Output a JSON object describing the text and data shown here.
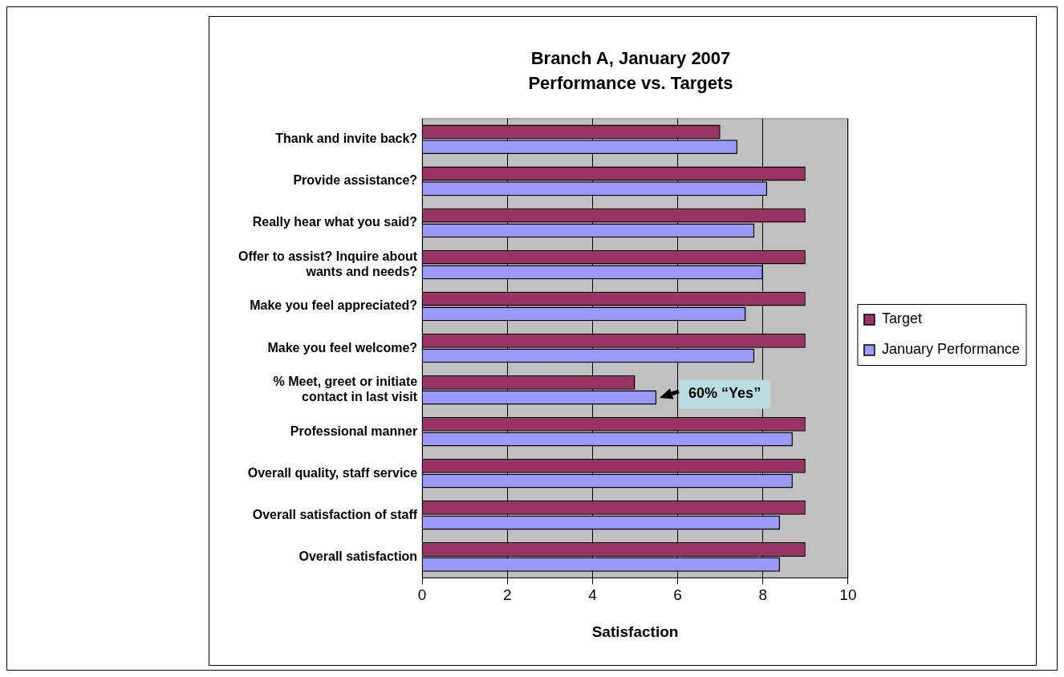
{
  "chart_data": {
    "type": "bar",
    "orientation": "horizontal",
    "title": "Branch A, January 2007",
    "subtitle": "Performance vs. Targets",
    "xlabel": "Satisfaction",
    "categories": [
      "Thank and invite back?",
      "Provide assistance?",
      "Really hear what you said?",
      "Offer to assist? Inquire about wants and needs?",
      "Make you feel appreciated?",
      "Make you feel welcome?",
      "% Meet, greet or initiate contact in last visit",
      "Professional manner",
      "Overall quality, staff service",
      "Overall satisfaction of staff",
      "Overall satisfaction"
    ],
    "series": [
      {
        "name": "Target",
        "color": "#993366",
        "values": [
          7,
          9,
          9,
          9,
          9,
          9,
          5,
          9,
          9,
          9,
          9
        ]
      },
      {
        "name": "January Performance",
        "color": "#9999ff",
        "values": [
          7.4,
          8.1,
          7.8,
          8,
          7.6,
          7.8,
          5.5,
          8.7,
          8.7,
          8.4,
          8.4
        ]
      }
    ],
    "xlim": [
      0,
      10
    ],
    "xticks": [
      0,
      2,
      4,
      6,
      8,
      10
    ],
    "grid": "x",
    "legend": "right",
    "annotations": [
      {
        "text": "60% “Yes”",
        "x": 5.5,
        "y": "% Meet, greet or initiate contact in last visit"
      }
    ]
  }
}
